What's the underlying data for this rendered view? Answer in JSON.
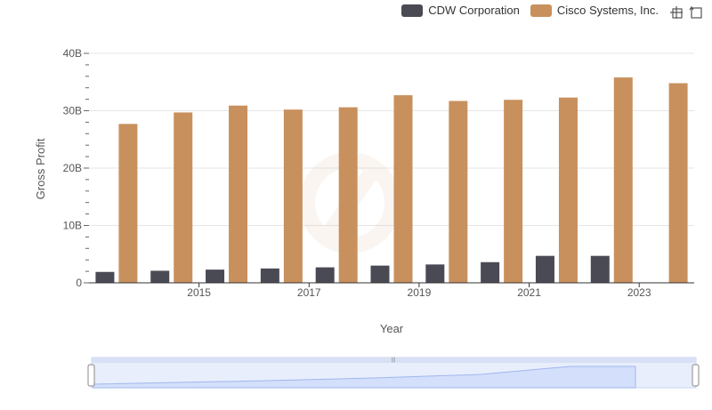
{
  "legend": {
    "series0": "CDW Corporation",
    "series1": "Cisco Systems, Inc."
  },
  "colors": {
    "series0": "#4a4a55",
    "series1": "#c8905d",
    "grid": "#e6e6e6",
    "axis": "#333333"
  },
  "icons": {
    "zoom": "crosshair-zoom-icon",
    "reset": "reset-zoom-icon"
  },
  "chart_data": {
    "type": "bar",
    "title": "",
    "xlabel": "Year",
    "ylabel": "Gross Profit",
    "x": [
      2014,
      2015,
      2016,
      2017,
      2018,
      2019,
      2020,
      2021,
      2022,
      2023,
      2024
    ],
    "x_ticks": [
      "2015",
      "2017",
      "2019",
      "2021",
      "2023"
    ],
    "y_ticks": [
      "0",
      "10B",
      "20B",
      "30B",
      "40B"
    ],
    "ylim": [
      0,
      40000000000
    ],
    "series": [
      {
        "name": "CDW Corporation",
        "values": [
          1900000000.0,
          2100000000.0,
          2300000000.0,
          2500000000.0,
          2700000000.0,
          3000000000.0,
          3200000000.0,
          3600000000.0,
          4700000000.0,
          4700000000.0,
          null
        ]
      },
      {
        "name": "Cisco Systems, Inc.",
        "values": [
          27700000000.0,
          29700000000.0,
          30900000000.0,
          30200000000.0,
          30600000000.0,
          32700000000.0,
          31700000000.0,
          31900000000.0,
          32300000000.0,
          35800000000.0,
          34800000000.0
        ]
      }
    ]
  }
}
